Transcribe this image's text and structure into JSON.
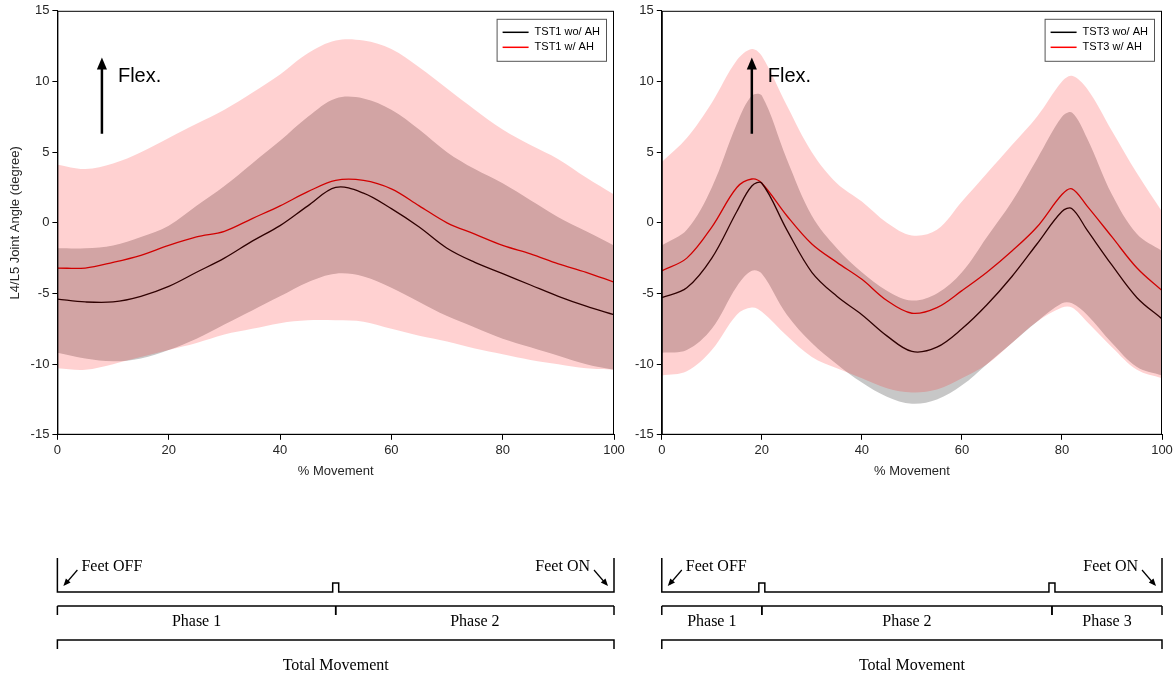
{
  "chart_data": [
    {
      "type": "line",
      "x_label": "% Movement",
      "y_label": "L4/L5 Joint Angle (degree)",
      "xlim": [
        0,
        100
      ],
      "xticks": [
        0,
        20,
        40,
        60,
        80,
        100
      ],
      "ylim": [
        -15,
        15
      ],
      "yticks": [
        -15,
        -10,
        -5,
        0,
        5,
        10,
        15
      ],
      "grid": false,
      "legend": "upper right",
      "annotation": "Flex.",
      "x": [
        0,
        5,
        10,
        15,
        20,
        25,
        30,
        35,
        40,
        45,
        50,
        55,
        60,
        65,
        70,
        75,
        80,
        85,
        90,
        95,
        100
      ],
      "series": [
        {
          "name": "TST1 wo/ AH",
          "color": "#000000",
          "values": [
            -5.4,
            -5.6,
            -5.6,
            -5.2,
            -4.5,
            -3.5,
            -2.5,
            -1.3,
            -0.2,
            1.2,
            2.5,
            2.1,
            1.0,
            -0.3,
            -1.8,
            -2.8,
            -3.6,
            -4.4,
            -5.2,
            -5.9,
            -6.5
          ],
          "upper": [
            -1.8,
            -1.8,
            -1.6,
            -1.0,
            -0.2,
            1.2,
            2.6,
            4.2,
            5.8,
            7.5,
            8.8,
            8.8,
            8.0,
            6.6,
            5.0,
            3.8,
            2.8,
            1.6,
            0.4,
            -0.6,
            -1.6
          ],
          "lower": [
            -9.2,
            -9.6,
            -9.8,
            -9.6,
            -9.0,
            -8.2,
            -7.2,
            -6.2,
            -5.2,
            -4.2,
            -3.6,
            -3.8,
            -4.6,
            -5.6,
            -6.6,
            -7.4,
            -8.2,
            -8.8,
            -9.4,
            -10.0,
            -10.4
          ]
        },
        {
          "name": "TST1 w/ AH",
          "color": "#ff0000",
          "values": [
            -3.2,
            -3.2,
            -2.8,
            -2.3,
            -1.6,
            -1.0,
            -0.6,
            0.3,
            1.2,
            2.2,
            3.0,
            3.0,
            2.4,
            1.2,
            0.0,
            -0.8,
            -1.6,
            -2.2,
            -2.9,
            -3.5,
            -4.2
          ],
          "upper": [
            4.1,
            3.8,
            4.2,
            5.0,
            6.0,
            7.0,
            8.0,
            9.2,
            10.5,
            12.0,
            12.9,
            12.9,
            12.3,
            11.0,
            9.5,
            8.0,
            6.6,
            5.5,
            4.5,
            3.2,
            2.0
          ],
          "lower": [
            -10.3,
            -10.4,
            -10.0,
            -9.5,
            -9.0,
            -8.5,
            -7.9,
            -7.5,
            -7.1,
            -6.9,
            -6.9,
            -7.0,
            -7.5,
            -8.0,
            -8.4,
            -8.9,
            -9.3,
            -9.7,
            -10.0,
            -10.3,
            -10.4
          ]
        }
      ],
      "feet_labels": [
        "Feet OFF",
        "Feet ON"
      ],
      "phases": [
        {
          "label": "Phase 1",
          "start": 0,
          "end": 50
        },
        {
          "label": "Phase 2",
          "start": 50,
          "end": 100
        }
      ],
      "total_label": "Total Movement"
    },
    {
      "type": "line",
      "x_label": "% Movement",
      "xlim": [
        0,
        100
      ],
      "xticks": [
        0,
        20,
        40,
        60,
        80,
        100
      ],
      "ylim": [
        -15,
        15
      ],
      "yticks": [
        -15,
        -10,
        -5,
        0,
        5,
        10,
        15
      ],
      "grid": false,
      "legend": "upper right",
      "annotation": "Flex.",
      "x": [
        0,
        5,
        10,
        15,
        18,
        20,
        25,
        30,
        35,
        40,
        45,
        50,
        55,
        60,
        65,
        70,
        75,
        80,
        82,
        85,
        90,
        95,
        100
      ],
      "series": [
        {
          "name": "TST3 wo/ AH",
          "color": "#000000",
          "values": [
            -5.3,
            -4.6,
            -2.5,
            0.8,
            2.6,
            2.8,
            -0.5,
            -3.5,
            -5.2,
            -6.5,
            -8.0,
            -9.1,
            -8.8,
            -7.5,
            -5.8,
            -3.8,
            -1.5,
            0.8,
            1.0,
            -0.5,
            -3.0,
            -5.3,
            -6.8
          ],
          "upper": [
            -1.6,
            -0.5,
            2.5,
            7.0,
            9.0,
            9.0,
            4.5,
            0.5,
            -1.8,
            -3.5,
            -4.8,
            -5.5,
            -5.0,
            -3.5,
            -1.0,
            1.5,
            4.5,
            7.5,
            7.8,
            6.0,
            2.0,
            -0.8,
            -2.0
          ],
          "lower": [
            -9.2,
            -9.0,
            -7.5,
            -4.5,
            -3.4,
            -3.6,
            -6.5,
            -8.5,
            -10.0,
            -11.3,
            -12.3,
            -12.8,
            -12.5,
            -11.5,
            -10.0,
            -8.5,
            -7.0,
            -5.7,
            -5.7,
            -6.5,
            -8.5,
            -10.2,
            -10.8
          ]
        },
        {
          "name": "TST3 w/ AH",
          "color": "#ff0000",
          "values": [
            -3.4,
            -2.5,
            -0.3,
            2.5,
            3.1,
            2.8,
            0.5,
            -1.5,
            -2.8,
            -4.0,
            -5.5,
            -6.4,
            -6.0,
            -4.8,
            -3.5,
            -2.0,
            -0.3,
            2.0,
            2.4,
            1.2,
            -1.0,
            -3.2,
            -4.8
          ],
          "upper": [
            4.3,
            6.0,
            8.5,
            11.5,
            12.3,
            11.8,
            8.3,
            5.0,
            2.8,
            1.5,
            0.0,
            -0.9,
            -0.5,
            1.5,
            3.5,
            5.5,
            7.5,
            10.0,
            10.4,
            9.5,
            6.5,
            3.5,
            0.8
          ],
          "lower": [
            -10.8,
            -10.5,
            -9.0,
            -6.5,
            -6.0,
            -6.3,
            -8.0,
            -9.5,
            -10.3,
            -11.0,
            -11.7,
            -12.0,
            -11.8,
            -11.0,
            -10.0,
            -8.5,
            -7.0,
            -6.0,
            -6.0,
            -7.0,
            -8.8,
            -10.4,
            -11.0
          ]
        }
      ],
      "feet_labels": [
        "Feet OFF",
        "Feet ON"
      ],
      "phases": [
        {
          "label": "Phase 1",
          "start": 0,
          "end": 20
        },
        {
          "label": "Phase 2",
          "start": 20,
          "end": 78
        },
        {
          "label": "Phase 3",
          "start": 78,
          "end": 100
        }
      ],
      "total_label": "Total Movement"
    }
  ]
}
